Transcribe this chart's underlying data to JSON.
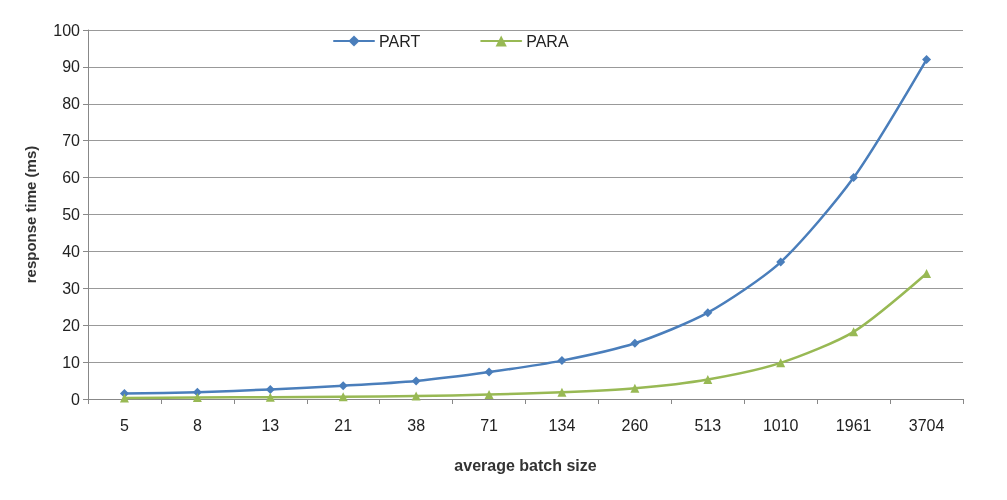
{
  "chart_data": {
    "type": "line",
    "xlabel": "average batch size",
    "ylabel": "response time (ms)",
    "categories": [
      "5",
      "8",
      "13",
      "21",
      "38",
      "71",
      "134",
      "260",
      "513",
      "1010",
      "1961",
      "3704"
    ],
    "series": [
      {
        "name": "PART",
        "color": "#4a7ebb",
        "marker": "diamond",
        "values": [
          1.5,
          1.8,
          2.6,
          3.6,
          4.9,
          7.3,
          10.4,
          15.1,
          23.4,
          37.1,
          60,
          92
        ]
      },
      {
        "name": "PARA",
        "color": "#98b954",
        "marker": "triangle",
        "values": [
          0.3,
          0.4,
          0.5,
          0.6,
          0.8,
          1.2,
          1.8,
          2.9,
          5.3,
          9.8,
          18.2,
          34
        ]
      }
    ],
    "ylim": [
      0,
      100
    ],
    "yticks": [
      0,
      10,
      20,
      30,
      40,
      50,
      60,
      70,
      80,
      90,
      100
    ],
    "grid": "y",
    "legend": "top",
    "line_style": "solid"
  }
}
